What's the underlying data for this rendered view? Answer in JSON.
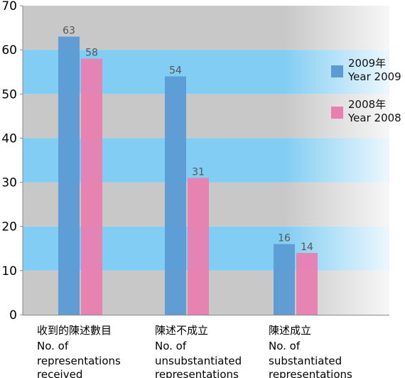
{
  "chart_data": {
    "type": "bar",
    "categories": [
      [
        "收到的陳述數目",
        "No. of",
        "representations",
        "received"
      ],
      [
        "陳述不成立",
        "No. of",
        "unsubstantiated",
        "representations"
      ],
      [
        "陳述成立",
        "No. of",
        "substantiated",
        "representations"
      ]
    ],
    "series": [
      {
        "name": [
          "2009年",
          "Year 2009"
        ],
        "values": [
          63,
          54,
          16
        ],
        "color": "#5b9bd5"
      },
      {
        "name": [
          "2008年",
          "Year 2008"
        ],
        "values": [
          58,
          31,
          14
        ],
        "color": "#e97fb0"
      }
    ],
    "yticks": [
      "0",
      "10",
      "20",
      "30",
      "40",
      "50",
      "60",
      "70"
    ],
    "ylim": [
      0,
      70
    ],
    "legend_position": "right",
    "band_colors": {
      "gray": "#c8c8c8",
      "blue": "#82cdf3"
    },
    "label_color": "#555555"
  }
}
